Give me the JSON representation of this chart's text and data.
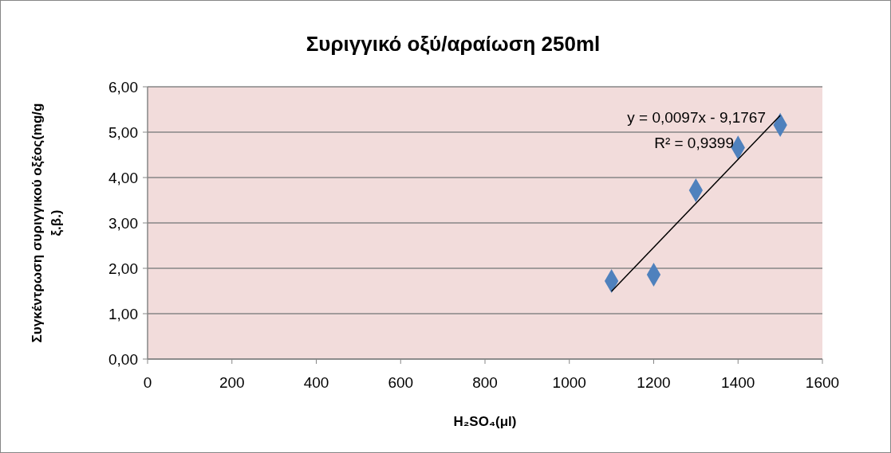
{
  "chart_data": {
    "type": "scatter",
    "title": "Συριγγικό οξύ/αραίωση 250ml",
    "xlabel": "H₂SO₄(μl)",
    "ylabel": "Συγκέντρωση συριγγικού οξέος(mg/g ξ.β.)",
    "series": [
      {
        "color": "#4f81bd",
        "marker": "diamond",
        "x": [
          1100,
          1200,
          1300,
          1400,
          1500
        ],
        "values": [
          1.72,
          1.86,
          3.72,
          4.66,
          5.16
        ]
      },
      {
        "type": "line",
        "color": "#000000",
        "marker": "none",
        "line_style": "solid",
        "x": [
          1100,
          1500
        ],
        "values": [
          1.49,
          5.37
        ]
      }
    ],
    "annotations": [
      "y = 0,0097x - 9,1767",
      "R² = 0,9399"
    ],
    "xlim": [
      0,
      1600
    ],
    "xticks": [
      0,
      200,
      400,
      600,
      800,
      1000,
      1200,
      1400,
      1600
    ],
    "ylim": [
      0,
      6
    ],
    "yticks": [
      {
        "value": 0,
        "label": "0,00"
      },
      {
        "value": 1,
        "label": "1,00"
      },
      {
        "value": 2,
        "label": "2,00"
      },
      {
        "value": 3,
        "label": "3,00"
      },
      {
        "value": 4,
        "label": "4,00"
      },
      {
        "value": 5,
        "label": "5,00"
      },
      {
        "value": 6,
        "label": "6,00"
      }
    ],
    "grid": "y"
  }
}
